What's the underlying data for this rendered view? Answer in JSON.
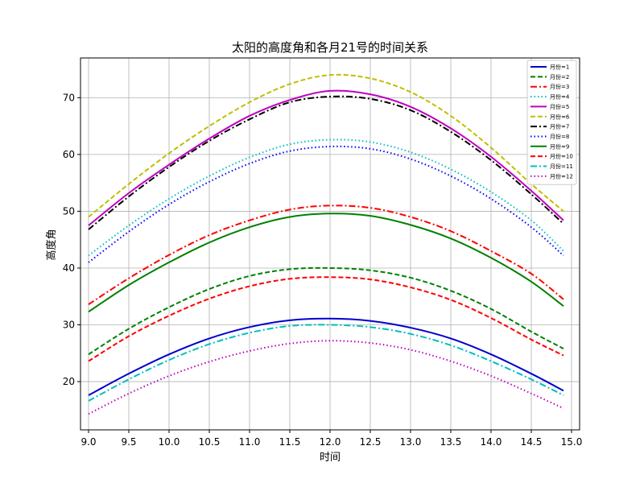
{
  "chart_data": {
    "type": "line",
    "title": "太阳的高度角和各月21号的时间关系",
    "xlabel": "时间",
    "ylabel": "高度角",
    "xlim": [
      8.9,
      15.1
    ],
    "ylim": [
      11.5,
      77
    ],
    "x_ticks": [
      9.0,
      9.5,
      10.0,
      10.5,
      11.0,
      11.5,
      12.0,
      12.5,
      13.0,
      13.5,
      14.0,
      14.5,
      15.0
    ],
    "x_tick_labels": [
      "9.0",
      "9.5",
      "10.0",
      "10.5",
      "11.0",
      "11.5",
      "12.0",
      "12.5",
      "13.0",
      "13.5",
      "14.0",
      "14.5",
      "15.0"
    ],
    "y_ticks": [
      20,
      30,
      40,
      50,
      60,
      70
    ],
    "y_tick_labels": [
      "20",
      "30",
      "40",
      "50",
      "60",
      "70"
    ],
    "grid": true,
    "legend_position": "top-right",
    "x": [
      9.0,
      9.5,
      10.0,
      10.5,
      11.0,
      11.5,
      12.0,
      12.5,
      13.0,
      13.5,
      14.0,
      14.5,
      14.9
    ],
    "series": [
      {
        "name": "月份=1",
        "color": "#0000cc",
        "dash": "solid",
        "values": [
          17.6,
          21.4,
          24.8,
          27.6,
          29.6,
          30.8,
          31.1,
          30.7,
          29.5,
          27.6,
          24.8,
          21.4,
          18.4
        ]
      },
      {
        "name": "月份=2",
        "color": "#008000",
        "dash": "dashed",
        "values": [
          24.8,
          29.3,
          33.1,
          36.3,
          38.6,
          39.8,
          40.0,
          39.6,
          38.3,
          36.0,
          32.8,
          28.8,
          25.8
        ]
      },
      {
        "name": "月份=3",
        "color": "#ff0000",
        "dash": "dashdot",
        "values": [
          33.6,
          38.2,
          42.3,
          45.8,
          48.4,
          50.3,
          51.0,
          50.6,
          49.0,
          46.5,
          43.0,
          39.0,
          34.5
        ]
      },
      {
        "name": "月份=4",
        "color": "#00bfbf",
        "dash": "dotted",
        "values": [
          42.2,
          47.5,
          52.2,
          56.2,
          59.5,
          61.8,
          62.6,
          62.2,
          60.4,
          57.4,
          53.4,
          48.4,
          43.0
        ]
      },
      {
        "name": "月份=5",
        "color": "#bf00bf",
        "dash": "solid",
        "values": [
          47.5,
          53.2,
          58.2,
          62.8,
          66.8,
          69.6,
          71.2,
          70.6,
          68.4,
          64.6,
          59.6,
          53.6,
          48.4
        ]
      },
      {
        "name": "月份=6",
        "color": "#bfbf00",
        "dash": "dashed",
        "values": [
          49.0,
          54.8,
          60.2,
          65.0,
          69.2,
          72.4,
          74.0,
          73.4,
          71.0,
          66.8,
          61.2,
          54.8,
          50.0
        ]
      },
      {
        "name": "月份=7",
        "color": "#000000",
        "dash": "dashdot",
        "values": [
          46.8,
          52.6,
          57.8,
          62.4,
          66.2,
          69.2,
          70.2,
          69.8,
          67.8,
          64.0,
          59.0,
          53.0,
          47.8
        ]
      },
      {
        "name": "月份=8",
        "color": "#0000ff",
        "dash": "dotted",
        "values": [
          41.0,
          46.4,
          51.2,
          55.2,
          58.4,
          60.6,
          61.4,
          61.0,
          59.2,
          56.2,
          52.2,
          47.2,
          42.2
        ]
      },
      {
        "name": "月份=9",
        "color": "#008000",
        "dash": "solid",
        "values": [
          32.3,
          37.0,
          41.0,
          44.5,
          47.2,
          49.0,
          49.6,
          49.2,
          47.6,
          45.2,
          41.8,
          37.6,
          33.3
        ]
      },
      {
        "name": "月份=10",
        "color": "#ff0000",
        "dash": "dashed",
        "values": [
          23.6,
          28.0,
          31.6,
          34.6,
          36.8,
          38.1,
          38.4,
          38.0,
          36.6,
          34.4,
          31.2,
          27.4,
          24.6
        ]
      },
      {
        "name": "月份=11",
        "color": "#00bfbf",
        "dash": "dashdot",
        "values": [
          16.6,
          20.4,
          23.8,
          26.6,
          28.6,
          29.8,
          30.0,
          29.6,
          28.4,
          26.4,
          23.6,
          20.4,
          17.6
        ]
      },
      {
        "name": "月份=12",
        "color": "#bf00bf",
        "dash": "dotted",
        "values": [
          14.3,
          17.9,
          21.0,
          23.5,
          25.4,
          26.7,
          27.2,
          26.8,
          25.6,
          23.6,
          21.0,
          17.9,
          15.3
        ]
      }
    ]
  }
}
